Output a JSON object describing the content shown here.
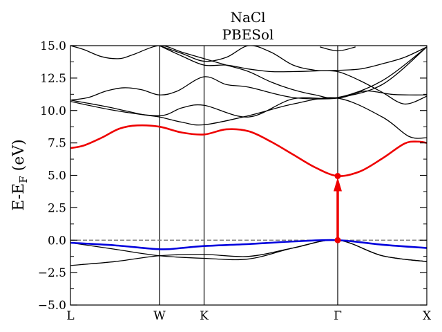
{
  "chart_data": {
    "type": "line",
    "title": "NaCl",
    "subtitle": "PBESol",
    "ylabel_main": "E-E",
    "ylabel_sub": "F",
    "ylabel_unit": " (eV)",
    "ylim": [
      -5.0,
      15.0
    ],
    "yticks": [
      "15.0",
      "12.5",
      "10.0",
      "7.5",
      "5.0",
      "2.5",
      "0.0",
      "−2.5",
      "−5.0"
    ],
    "ytick_values": [
      15.0,
      12.5,
      10.0,
      7.5,
      5.0,
      2.5,
      0.0,
      -2.5,
      -5.0
    ],
    "kpath_labels": [
      "L",
      "W",
      "K",
      "Γ",
      "X"
    ],
    "kpath_positions": [
      0.0,
      1.0,
      1.5,
      3.0,
      4.0
    ],
    "fermi_level": 0.0,
    "band_gap": {
      "from": [
        3.0,
        0.0
      ],
      "to": [
        3.0,
        4.95
      ],
      "color": "#ee0000"
    },
    "colors": {
      "conduction_min": "#ee0000",
      "valence_max": "#0000dd",
      "other_bands": "#000000",
      "fermi": "#808080"
    },
    "series": [
      {
        "role": "valence-max",
        "x": [
          0,
          0.5,
          1.0,
          1.25,
          1.5,
          2.0,
          2.5,
          3.0,
          3.5,
          4.0
        ],
        "y": [
          -0.2,
          -0.4,
          -0.7,
          -0.6,
          -0.45,
          -0.3,
          -0.1,
          0.0,
          -0.35,
          -0.6
        ]
      },
      {
        "role": "conduction-min",
        "x": [
          0,
          0.15,
          0.35,
          0.55,
          0.75,
          1.0,
          1.25,
          1.5,
          1.75,
          2.0,
          2.25,
          2.5,
          2.75,
          3.0,
          3.25,
          3.5,
          3.75,
          3.9,
          4.0
        ],
        "y": [
          7.1,
          7.3,
          7.9,
          8.6,
          8.85,
          8.75,
          8.3,
          8.15,
          8.55,
          8.4,
          7.6,
          6.6,
          5.6,
          4.95,
          5.3,
          6.3,
          7.45,
          7.6,
          7.5
        ]
      },
      {
        "role": "band",
        "x": [
          0,
          0.5,
          1.0,
          1.5,
          2.0,
          2.5,
          3.0,
          3.5,
          4.0
        ],
        "y": [
          -1.95,
          -1.65,
          -1.2,
          -1.1,
          -1.25,
          -0.6,
          0.0,
          -1.2,
          -1.65
        ]
      },
      {
        "role": "band",
        "x": [
          0,
          0.5,
          1.0,
          1.5,
          2.0,
          2.5,
          3.0,
          3.5,
          4.0
        ],
        "y": [
          -0.2,
          -0.7,
          -1.2,
          -1.4,
          -1.45,
          -0.6,
          0.0,
          -1.2,
          -1.65
        ]
      },
      {
        "role": "band",
        "x": [
          0,
          0.4,
          0.8,
          1.0,
          1.25,
          1.5,
          2.0,
          2.5,
          3.0,
          3.5,
          3.8,
          4.0
        ],
        "y": [
          10.8,
          10.3,
          9.7,
          9.5,
          9.1,
          8.9,
          9.6,
          10.5,
          10.95,
          9.5,
          8.0,
          7.9
        ]
      },
      {
        "role": "band",
        "x": [
          0,
          0.5,
          1.0,
          1.25,
          1.5,
          2.0,
          2.5,
          3.0,
          3.5,
          4.0
        ],
        "y": [
          10.7,
          10.0,
          9.6,
          10.2,
          10.4,
          9.5,
          10.9,
          11.0,
          12.3,
          14.9
        ]
      },
      {
        "role": "band",
        "x": [
          0,
          0.2,
          0.4,
          0.6,
          0.8,
          1.0,
          1.2,
          1.5,
          1.75,
          2.0,
          2.5,
          3.0,
          3.3,
          3.6,
          3.8,
          4.0
        ],
        "y": [
          10.8,
          11.0,
          11.5,
          11.75,
          11.6,
          11.2,
          11.5,
          12.6,
          12.0,
          11.8,
          11.0,
          10.95,
          11.5,
          11.25,
          11.2,
          11.2
        ]
      },
      {
        "role": "band",
        "x": [
          0,
          0.15,
          0.35,
          0.55,
          0.7,
          1.0,
          1.25,
          1.5,
          1.75,
          2.0,
          2.25,
          2.5,
          2.75,
          3.0,
          3.5,
          4.0
        ],
        "y": [
          15.0,
          14.7,
          14.15,
          14.0,
          14.3,
          15.0,
          14.5,
          14.0,
          13.5,
          13.0,
          12.2,
          11.6,
          11.2,
          11.0,
          12.0,
          14.9
        ]
      },
      {
        "role": "band",
        "x": [
          1.0,
          1.25,
          1.5,
          1.75,
          2.0,
          2.25,
          2.5,
          2.75,
          3.0,
          3.25,
          3.5,
          3.75,
          4.0
        ],
        "y": [
          15.0,
          14.2,
          13.5,
          13.5,
          13.2,
          13.0,
          13.0,
          13.05,
          13.1,
          13.2,
          13.6,
          14.1,
          14.9
        ]
      },
      {
        "role": "band",
        "x": [
          1.0,
          1.25,
          1.5,
          1.75,
          2.0,
          2.25,
          2.5,
          2.75,
          3.0,
          3.25,
          3.5,
          3.75,
          4.0
        ],
        "y": [
          15.0,
          14.4,
          13.8,
          14.1,
          15.0,
          14.5,
          13.5,
          13.1,
          13.0,
          12.3,
          11.4,
          10.5,
          11.1
        ]
      },
      {
        "role": "band",
        "x": [
          2.8,
          3.0,
          3.2
        ],
        "y": [
          14.9,
          14.6,
          14.9
        ]
      }
    ]
  }
}
